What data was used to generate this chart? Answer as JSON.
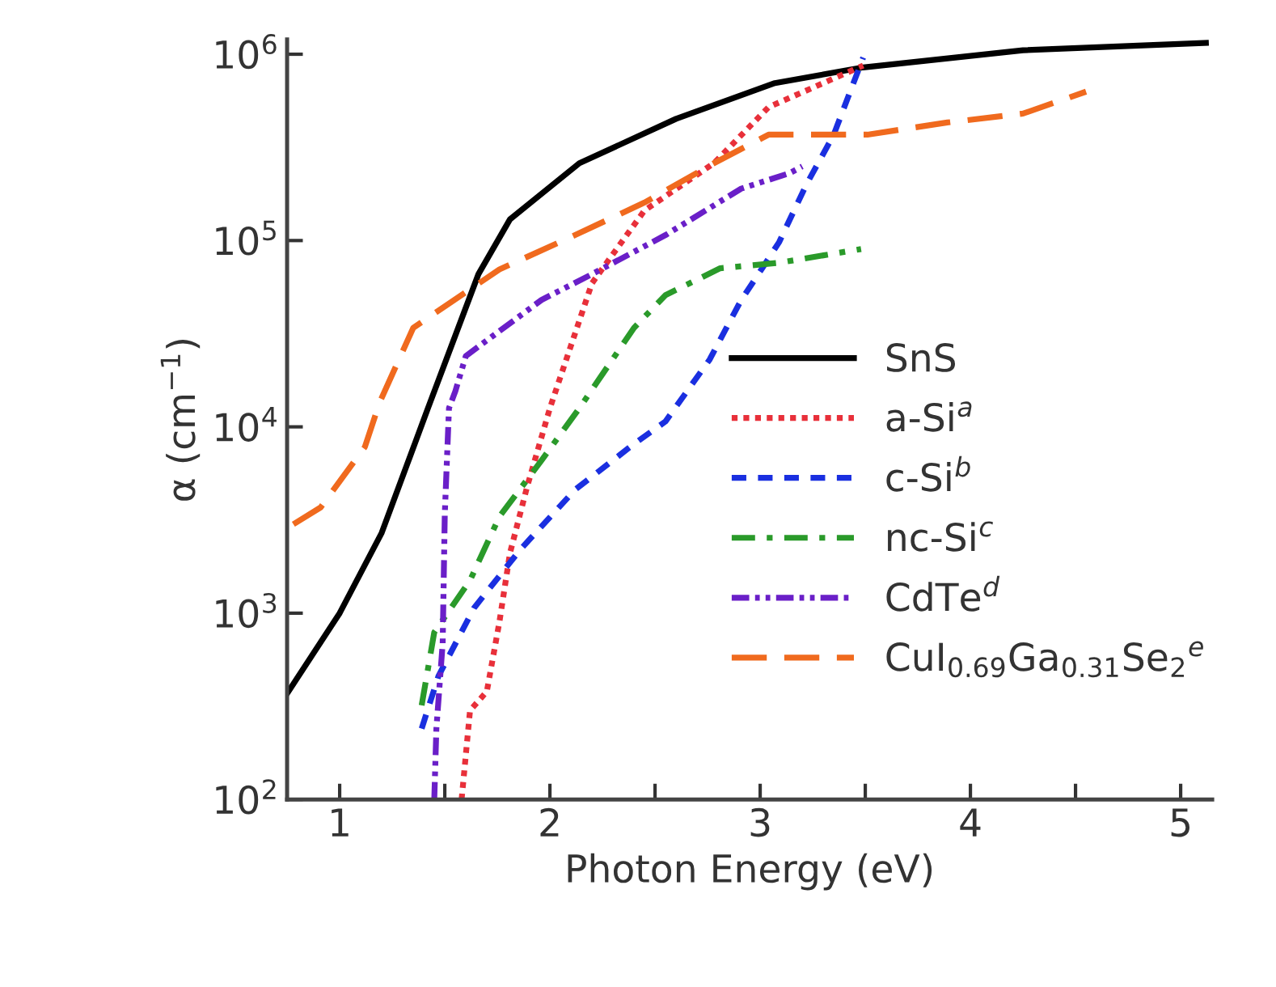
{
  "chart_data": {
    "type": "line",
    "xlabel": "Photon Energy (eV)",
    "ylabel": "α (cm$^{−1}$)",
    "log": "y",
    "xlim": [
      0.75,
      5.15
    ],
    "ylim": [
      100,
      1200000
    ],
    "xticks": [
      1,
      {
        "value": 1.5,
        "label": null
      },
      2,
      {
        "value": 2.5,
        "label": null
      },
      3,
      {
        "value": 3.5,
        "label": null
      },
      4,
      {
        "value": 4.5,
        "label": null
      },
      5
    ],
    "yticks": [
      {
        "value": 100,
        "label": "10$^{2}$"
      },
      {
        "value": 1000,
        "label": "10$^{3}$"
      },
      {
        "value": 10000,
        "label": "10$^{4}$"
      },
      {
        "value": 100000,
        "label": "10$^{5}$"
      },
      {
        "value": 1000000,
        "label": "10$^{6}$"
      }
    ],
    "grid": false,
    "legend": "right",
    "series": [
      {
        "name": "SnS",
        "color": "#000000",
        "line_style": "solid",
        "x": [
          0.75,
          1.0,
          1.2,
          1.42,
          1.66,
          1.81,
          2.14,
          2.6,
          3.07,
          3.49,
          4.25,
          5.12
        ],
        "values": [
          370,
          1000,
          2700,
          12600,
          66000,
          130000,
          260000,
          450000,
          700000,
          850000,
          1050000,
          1150000
        ]
      },
      {
        "name": "a-Si$^{a}$",
        "color": "#e8303a",
        "line_style": "dotted",
        "x": [
          1.58,
          1.62,
          1.7,
          1.76,
          1.81,
          1.89,
          2.0,
          2.2,
          2.27,
          2.45,
          2.78,
          3.04,
          3.49
        ],
        "values": [
          100,
          300,
          380,
          900,
          2100,
          4700,
          12600,
          59000,
          76000,
          145000,
          260000,
          520000,
          870000
        ]
      },
      {
        "name": "c-Si$^{b}$",
        "color": "#1a2fe0",
        "line_style": "dashed",
        "x": [
          1.39,
          1.47,
          1.64,
          1.86,
          2.12,
          2.4,
          2.55,
          2.76,
          2.91,
          3.01,
          3.09,
          3.22,
          3.35,
          3.49
        ],
        "values": [
          240,
          460,
          1070,
          2200,
          4600,
          8100,
          10700,
          23000,
          48000,
          71000,
          98000,
          200000,
          370000,
          960000
        ]
      },
      {
        "name": "nc-Si$^{c}$",
        "color": "#2a9a2a",
        "line_style": "dashdot",
        "x": [
          1.39,
          1.45,
          1.62,
          1.76,
          1.96,
          2.14,
          2.4,
          2.55,
          2.81,
          3.09,
          3.48
        ],
        "values": [
          320,
          790,
          1500,
          3300,
          6600,
          12600,
          34000,
          51000,
          71000,
          76000,
          90000
        ]
      },
      {
        "name": "CdTe$^{d}$",
        "color": "#6a1fc8",
        "line_style": "dashdotdot",
        "x": [
          1.45,
          1.46,
          1.49,
          1.5,
          1.52,
          1.55,
          1.6,
          1.96,
          2.2,
          2.55,
          2.91,
          3.14,
          3.2
        ],
        "values": [
          100,
          240,
          690,
          3400,
          12600,
          15500,
          24000,
          48000,
          66000,
          107000,
          190000,
          230000,
          250000
        ]
      },
      {
        "name": "CuI$_{0.69}$Ga$_{0.31}$Se$_{2}$$^{e}$",
        "color": "#f06a1e",
        "line_style": "longdash",
        "x": [
          0.78,
          0.91,
          1.12,
          1.19,
          1.35,
          1.76,
          2.12,
          2.45,
          2.78,
          3.04,
          3.51,
          3.89,
          4.25,
          4.55
        ],
        "values": [
          3000,
          3700,
          7800,
          13500,
          34000,
          70000,
          107000,
          160000,
          260000,
          370000,
          370000,
          430000,
          480000,
          630000
        ]
      }
    ]
  }
}
